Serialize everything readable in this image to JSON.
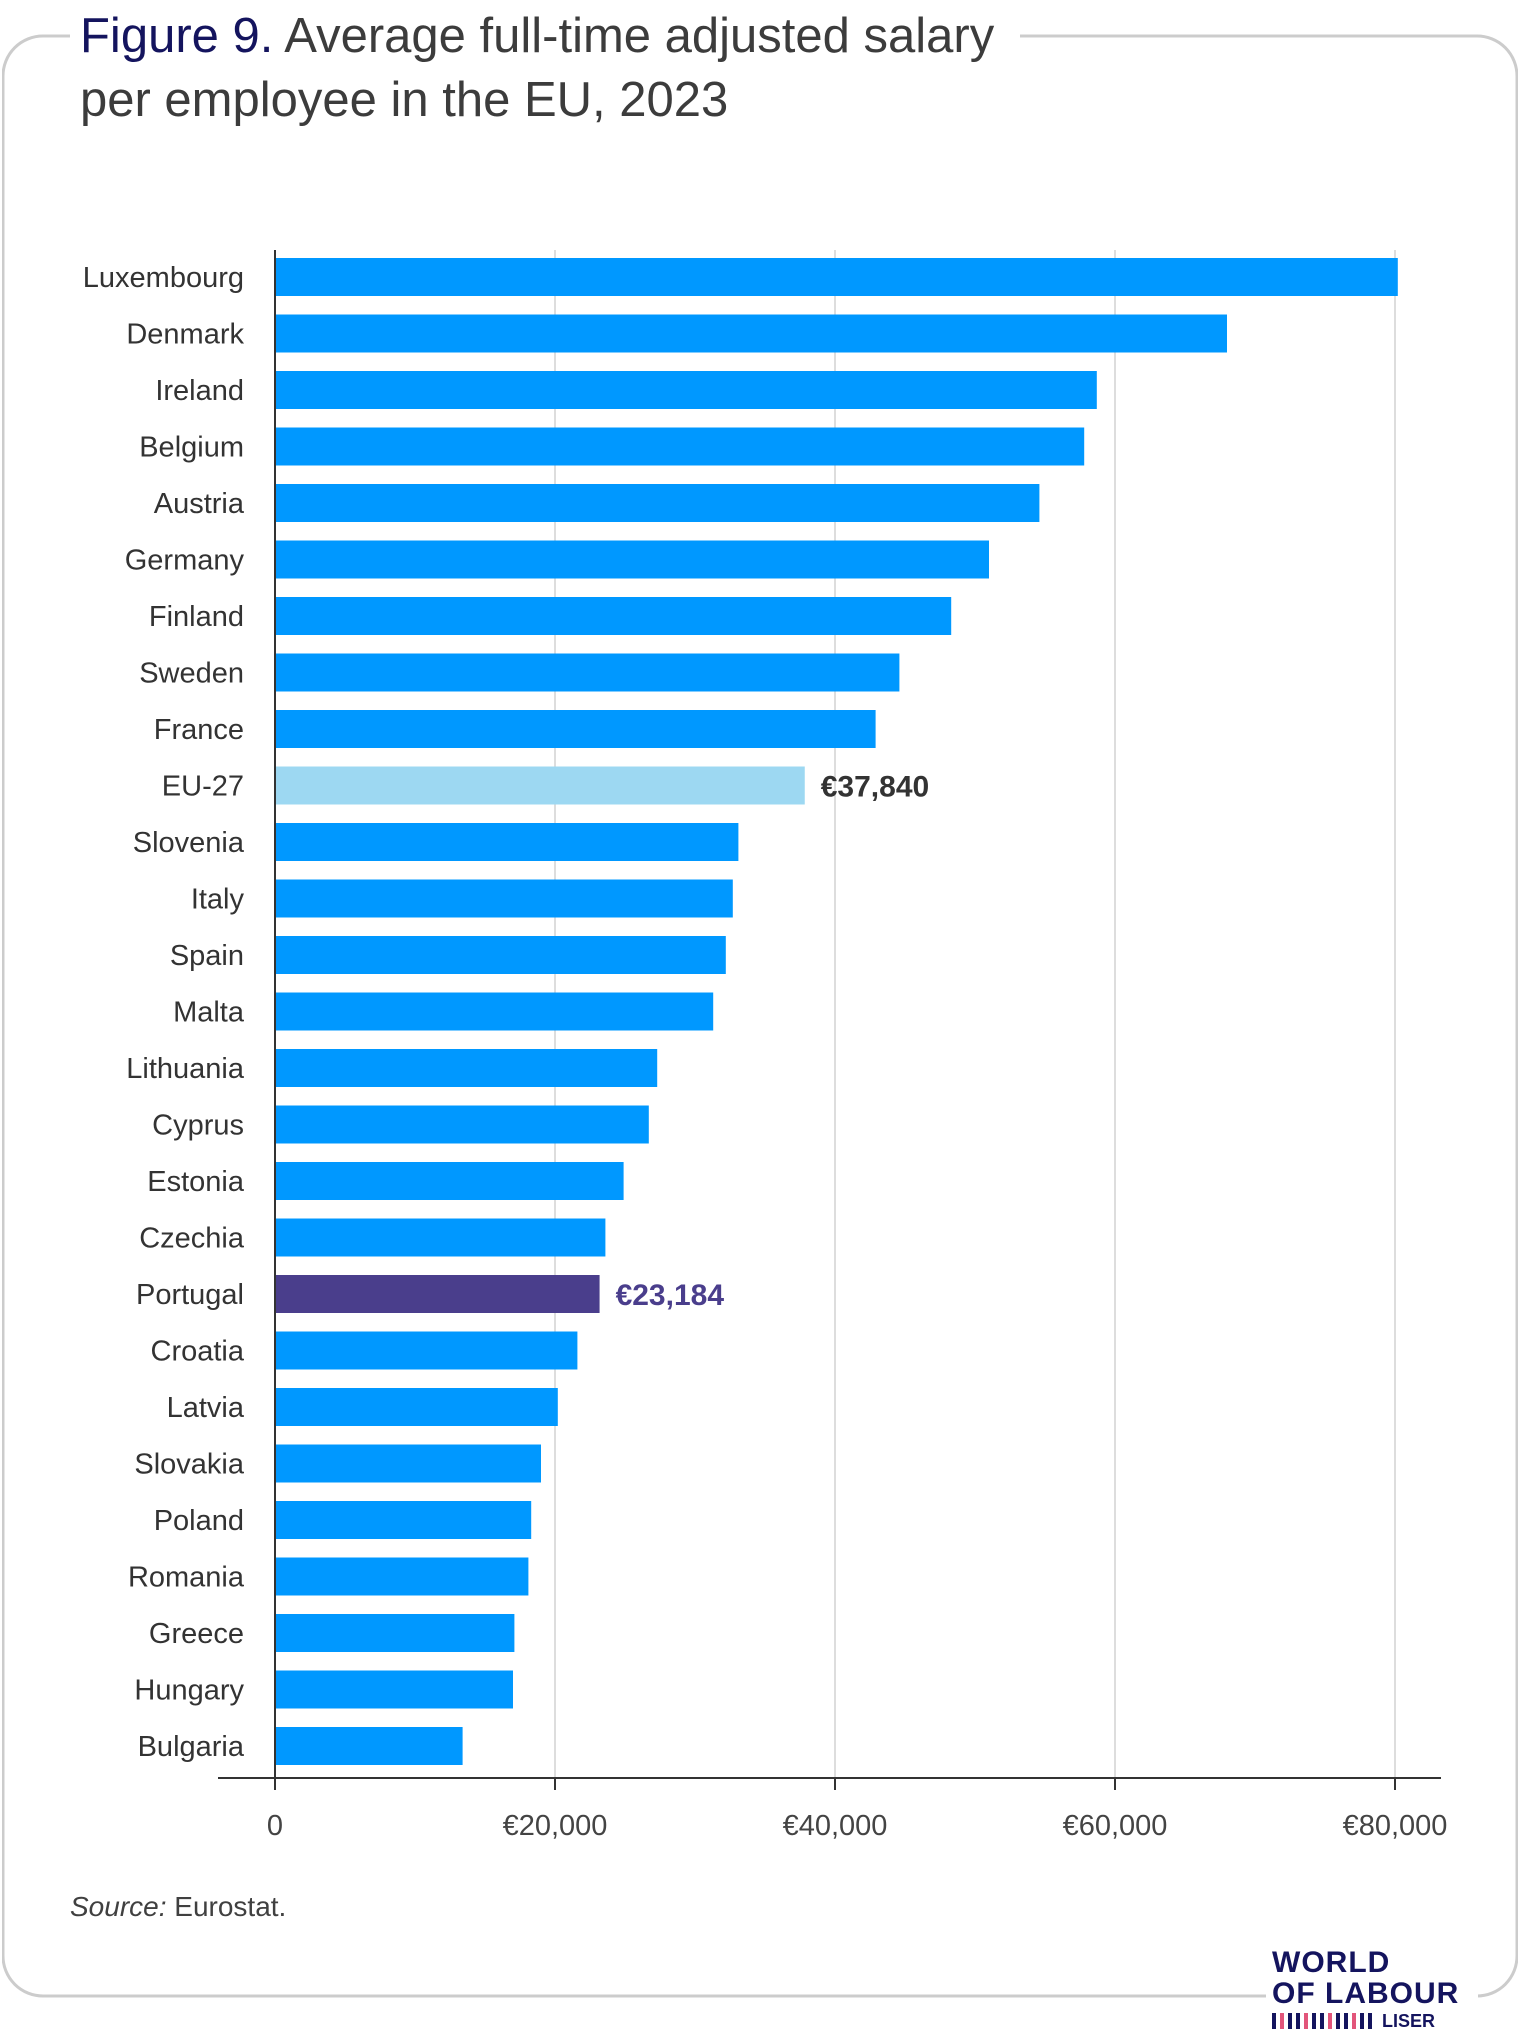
{
  "figure": {
    "number_label": "Figure 9.",
    "title": "Average full-time adjusted salary per employee in the EU, 2023"
  },
  "source": {
    "label": "Source:",
    "text": "Eurostat."
  },
  "logo": {
    "line1": "WORLD",
    "line2": "OF LABOUR",
    "line3": "LISER"
  },
  "colors": {
    "bar": "#0098ff",
    "eu_average": "#9dd8f2",
    "highlight": "#4a3e8c",
    "eu_label": "#333333",
    "title_accent": "#14145e",
    "frame": "#cccccc",
    "grid": "#dddddd",
    "axis": "#333333"
  },
  "chart_data": {
    "type": "bar",
    "orientation": "horizontal",
    "title": "Average full-time adjusted salary per employee in the EU, 2023",
    "xlabel": "",
    "ylabel": "",
    "xlim": [
      0,
      80000
    ],
    "xticks": [
      0,
      20000,
      40000,
      60000,
      80000
    ],
    "xtick_labels": [
      "0",
      "€20,000",
      "€40,000",
      "€60,000",
      "€80,000"
    ],
    "grid": "vertical",
    "categories": [
      "Luxembourg",
      "Denmark",
      "Ireland",
      "Belgium",
      "Austria",
      "Germany",
      "Finland",
      "Sweden",
      "France",
      "EU-27",
      "Slovenia",
      "Italy",
      "Spain",
      "Malta",
      "Lithuania",
      "Cyprus",
      "Estonia",
      "Czechia",
      "Portugal",
      "Croatia",
      "Latvia",
      "Slovakia",
      "Poland",
      "Romania",
      "Greece",
      "Hungary",
      "Bulgaria"
    ],
    "values": [
      80200,
      68000,
      58700,
      57800,
      54600,
      51000,
      48300,
      44600,
      42900,
      37840,
      33100,
      32700,
      32200,
      31300,
      27300,
      26700,
      24900,
      23600,
      23184,
      21600,
      20200,
      19000,
      18300,
      18100,
      17100,
      17000,
      13400
    ],
    "highlights": [
      {
        "category": "EU-27",
        "label": "€37,840",
        "role": "eu_average"
      },
      {
        "category": "Portugal",
        "label": "€23,184",
        "role": "highlight"
      }
    ]
  }
}
